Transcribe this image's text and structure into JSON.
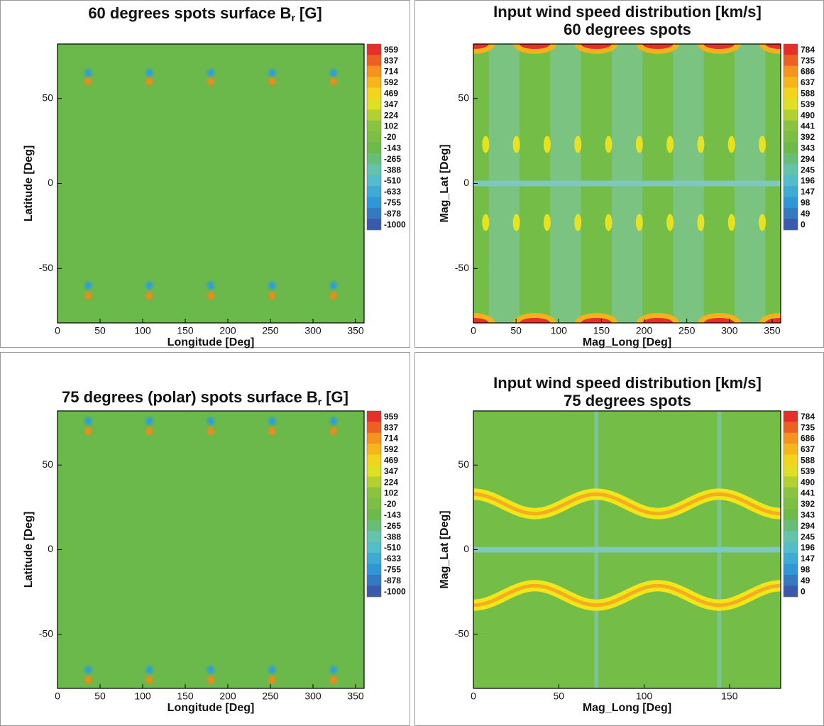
{
  "chart_data": [
    {
      "type": "contour",
      "title": {
        "text": "60 degrees spots surface B",
        "subscript": "r",
        "suffix": "[G]"
      },
      "xlabel": "Longitude [Deg]",
      "ylabel": "Latitude [Deg]",
      "xlim": [
        0,
        360
      ],
      "xticks": [
        0,
        50,
        100,
        150,
        200,
        250,
        300,
        350
      ],
      "ylim": [
        -82,
        82
      ],
      "yticks": [
        -50,
        0,
        50
      ],
      "background": "#6ab94a",
      "colorbar": {
        "levels": [
          959,
          837,
          714,
          592,
          469,
          347,
          224,
          102,
          -20,
          -143,
          -265,
          -388,
          -510,
          -633,
          -755,
          -878,
          -1000
        ],
        "colormap": [
          "#3a5bab",
          "#2f9fdc",
          "#62c5c2",
          "#6ab94a",
          "#8cc43f",
          "#f2e51c",
          "#f6a11b",
          "#e5302a"
        ]
      },
      "spot_longitudes": [
        36,
        108,
        180,
        252,
        324
      ],
      "spots": [
        {
          "lat": 65,
          "color": "#2f9fdc"
        },
        {
          "lat": 60,
          "color": "#f08a1c"
        },
        {
          "lat": -60,
          "color": "#2f9fdc"
        },
        {
          "lat": -66,
          "color": "#f08a1c"
        }
      ]
    },
    {
      "type": "wind",
      "title": "Input wind speed distribution [km/s]",
      "subtitle": "60 degrees spots",
      "xlabel": "Mag_Long [Deg]",
      "ylabel": "Mag_Lat [Deg]",
      "xlim": [
        0,
        360
      ],
      "xticks": [
        0,
        50,
        100,
        150,
        200,
        250,
        300,
        350
      ],
      "ylim": [
        -82,
        82
      ],
      "yticks": [
        -50,
        0,
        50
      ],
      "background": "#74bd47",
      "colorbar": {
        "levels": [
          784,
          735,
          686,
          637,
          588,
          539,
          490,
          441,
          392,
          343,
          294,
          245,
          196,
          147,
          98,
          49,
          0
        ],
        "colormap": [
          "#3a5bab",
          "#2f9fdc",
          "#62c5c2",
          "#6ab94a",
          "#8cc43f",
          "#f2e51c",
          "#f6a11b",
          "#e5302a"
        ]
      }
    },
    {
      "type": "contour",
      "title": {
        "text": "75 degrees (polar) spots surface B",
        "subscript": "r",
        "suffix": "[G]"
      },
      "xlabel": "Longitude [Deg]",
      "ylabel": "Latitude [Deg]",
      "xlim": [
        0,
        360
      ],
      "xticks": [
        0,
        50,
        100,
        150,
        200,
        250,
        300,
        350
      ],
      "ylim": [
        -82,
        82
      ],
      "yticks": [
        -50,
        0,
        50
      ],
      "background": "#6ab94a",
      "colorbar": {
        "levels": [
          959,
          837,
          714,
          592,
          469,
          347,
          224,
          102,
          -20,
          -143,
          -265,
          -388,
          -510,
          -633,
          -755,
          -878,
          -1000
        ],
        "colormap": [
          "#3a5bab",
          "#2f9fdc",
          "#62c5c2",
          "#6ab94a",
          "#8cc43f",
          "#f2e51c",
          "#f6a11b",
          "#e5302a"
        ]
      },
      "spot_longitudes": [
        36,
        108,
        180,
        252,
        324
      ],
      "spots": [
        {
          "lat": 76,
          "color": "#2f9fdc"
        },
        {
          "lat": 70,
          "color": "#f08a1c"
        },
        {
          "lat": -71,
          "color": "#2f9fdc"
        },
        {
          "lat": -77,
          "color": "#f08a1c"
        }
      ]
    },
    {
      "type": "wind-wave",
      "title": "Input wind speed distribution [km/s]",
      "subtitle": "75 degrees spots",
      "xlabel": "Mag_Long [Deg]",
      "ylabel": "Mag_Lat [Deg]",
      "xlim": [
        0,
        180
      ],
      "xticks": [
        0,
        50,
        100,
        150
      ],
      "ylim": [
        -82,
        82
      ],
      "yticks": [
        -50,
        0,
        50
      ],
      "background": "#74bd47",
      "colorbar": {
        "levels": [
          784,
          735,
          686,
          637,
          588,
          539,
          490,
          441,
          392,
          343,
          294,
          245,
          196,
          147,
          98,
          49,
          0
        ],
        "colormap": [
          "#3a5bab",
          "#2f9fdc",
          "#62c5c2",
          "#6ab94a",
          "#8cc43f",
          "#f2e51c",
          "#f6a11b",
          "#e5302a"
        ]
      }
    }
  ]
}
